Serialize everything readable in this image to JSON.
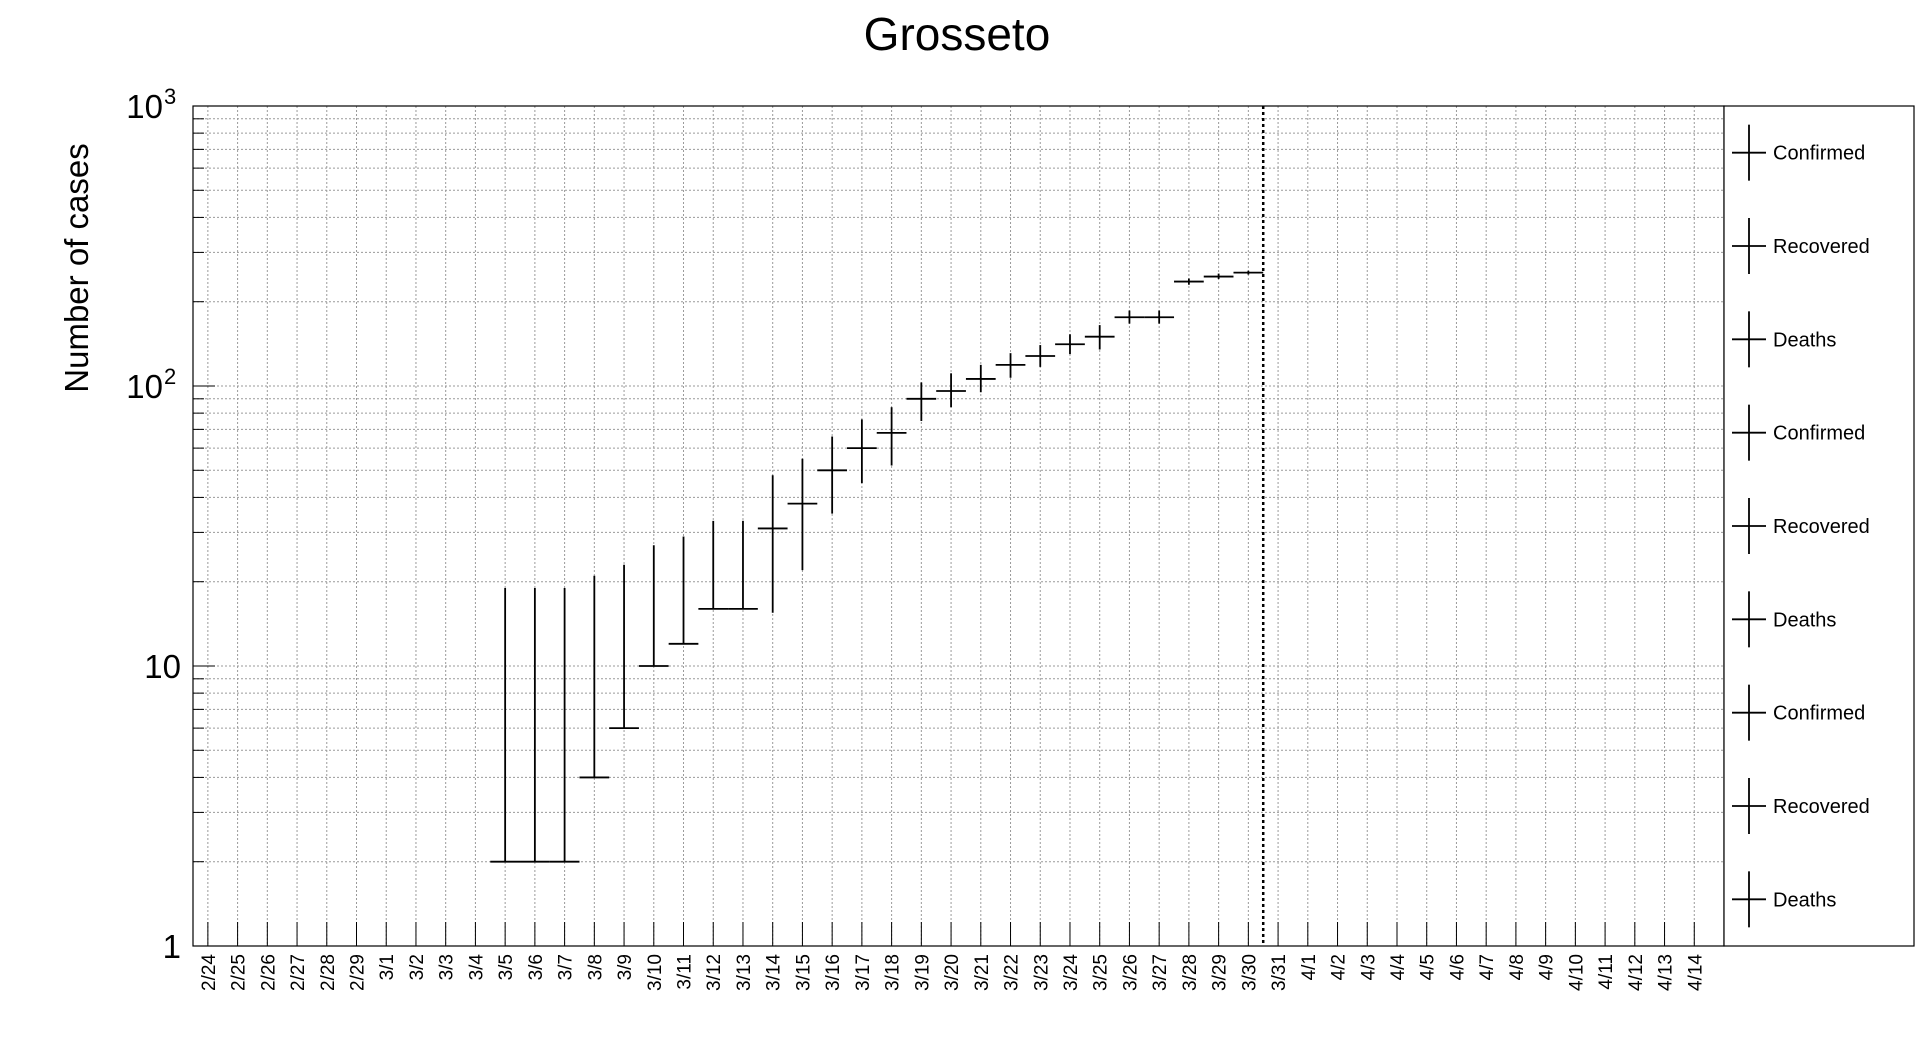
{
  "chart_data": {
    "type": "scatter",
    "title": "Grosseto",
    "ylabel": "Number of cases",
    "xlabel": "",
    "y_scale": "log",
    "ylim": [
      1,
      1000
    ],
    "grid": true,
    "y_ticks": [
      {
        "base": "10",
        "exp": "0",
        "label": "1"
      },
      {
        "base": "10",
        "exp": "",
        "label": "10"
      },
      {
        "base": "10",
        "exp": "2",
        "label": ""
      },
      {
        "base": "10",
        "exp": "3",
        "label": ""
      }
    ],
    "categories": [
      "2/24",
      "2/25",
      "2/26",
      "2/27",
      "2/28",
      "2/29",
      "3/1",
      "3/2",
      "3/3",
      "3/4",
      "3/5",
      "3/6",
      "3/7",
      "3/8",
      "3/9",
      "3/10",
      "3/11",
      "3/12",
      "3/13",
      "3/14",
      "3/15",
      "3/16",
      "3/17",
      "3/18",
      "3/19",
      "3/20",
      "3/21",
      "3/22",
      "3/23",
      "3/24",
      "3/25",
      "3/26",
      "3/27",
      "3/28",
      "3/29",
      "3/30",
      "3/31",
      "4/1",
      "4/2",
      "4/3",
      "4/4",
      "4/5",
      "4/6",
      "4/7",
      "4/8",
      "4/9",
      "4/10",
      "4/11",
      "4/12",
      "4/13",
      "4/14"
    ],
    "series": [
      {
        "name": "Confirmed",
        "color": "#000000",
        "points": [
          {
            "x": "3/5",
            "y": 2,
            "err_low": 2,
            "err_high": 19
          },
          {
            "x": "3/6",
            "y": 2,
            "err_low": 2,
            "err_high": 19
          },
          {
            "x": "3/7",
            "y": 2,
            "err_low": 2,
            "err_high": 19
          },
          {
            "x": "3/8",
            "y": 4,
            "err_low": 4,
            "err_high": 21
          },
          {
            "x": "3/9",
            "y": 6,
            "err_low": 6,
            "err_high": 23
          },
          {
            "x": "3/10",
            "y": 10,
            "err_low": 10,
            "err_high": 27
          },
          {
            "x": "3/11",
            "y": 12,
            "err_low": 12,
            "err_high": 29
          },
          {
            "x": "3/12",
            "y": 16,
            "err_low": 16,
            "err_high": 33
          },
          {
            "x": "3/13",
            "y": 16,
            "err_low": 16,
            "err_high": 33
          },
          {
            "x": "3/14",
            "y": 31,
            "err_low": 15.5,
            "err_high": 48
          },
          {
            "x": "3/15",
            "y": 38,
            "err_low": 22,
            "err_high": 55
          },
          {
            "x": "3/16",
            "y": 50,
            "err_low": 35,
            "err_high": 66
          },
          {
            "x": "3/17",
            "y": 60,
            "err_low": 45,
            "err_high": 76
          },
          {
            "x": "3/18",
            "y": 68,
            "err_low": 52,
            "err_high": 84
          },
          {
            "x": "3/19",
            "y": 90,
            "err_low": 75,
            "err_high": 103
          },
          {
            "x": "3/20",
            "y": 96,
            "err_low": 84,
            "err_high": 111
          },
          {
            "x": "3/21",
            "y": 106,
            "err_low": 95,
            "err_high": 119
          },
          {
            "x": "3/22",
            "y": 119,
            "err_low": 107,
            "err_high": 131
          },
          {
            "x": "3/23",
            "y": 128,
            "err_low": 117,
            "err_high": 140
          },
          {
            "x": "3/24",
            "y": 141,
            "err_low": 130,
            "err_high": 153
          },
          {
            "x": "3/25",
            "y": 150,
            "err_low": 135,
            "err_high": 165
          },
          {
            "x": "3/26",
            "y": 176,
            "err_low": 167,
            "err_high": 186
          },
          {
            "x": "3/27",
            "y": 176,
            "err_low": 167,
            "err_high": 186
          },
          {
            "x": "3/28",
            "y": 236,
            "err_low": 230,
            "err_high": 242
          },
          {
            "x": "3/29",
            "y": 246,
            "err_low": 241,
            "err_high": 252
          },
          {
            "x": "3/30",
            "y": 254,
            "err_low": 250,
            "err_high": 258
          }
        ]
      }
    ],
    "marker_line_after": "3/30",
    "legend": {
      "position": "right",
      "entries": [
        "Confirmed",
        "Recovered",
        "Deaths",
        "Confirmed",
        "Recovered",
        "Deaths",
        "Confirmed",
        "Recovered",
        "Deaths"
      ]
    }
  }
}
